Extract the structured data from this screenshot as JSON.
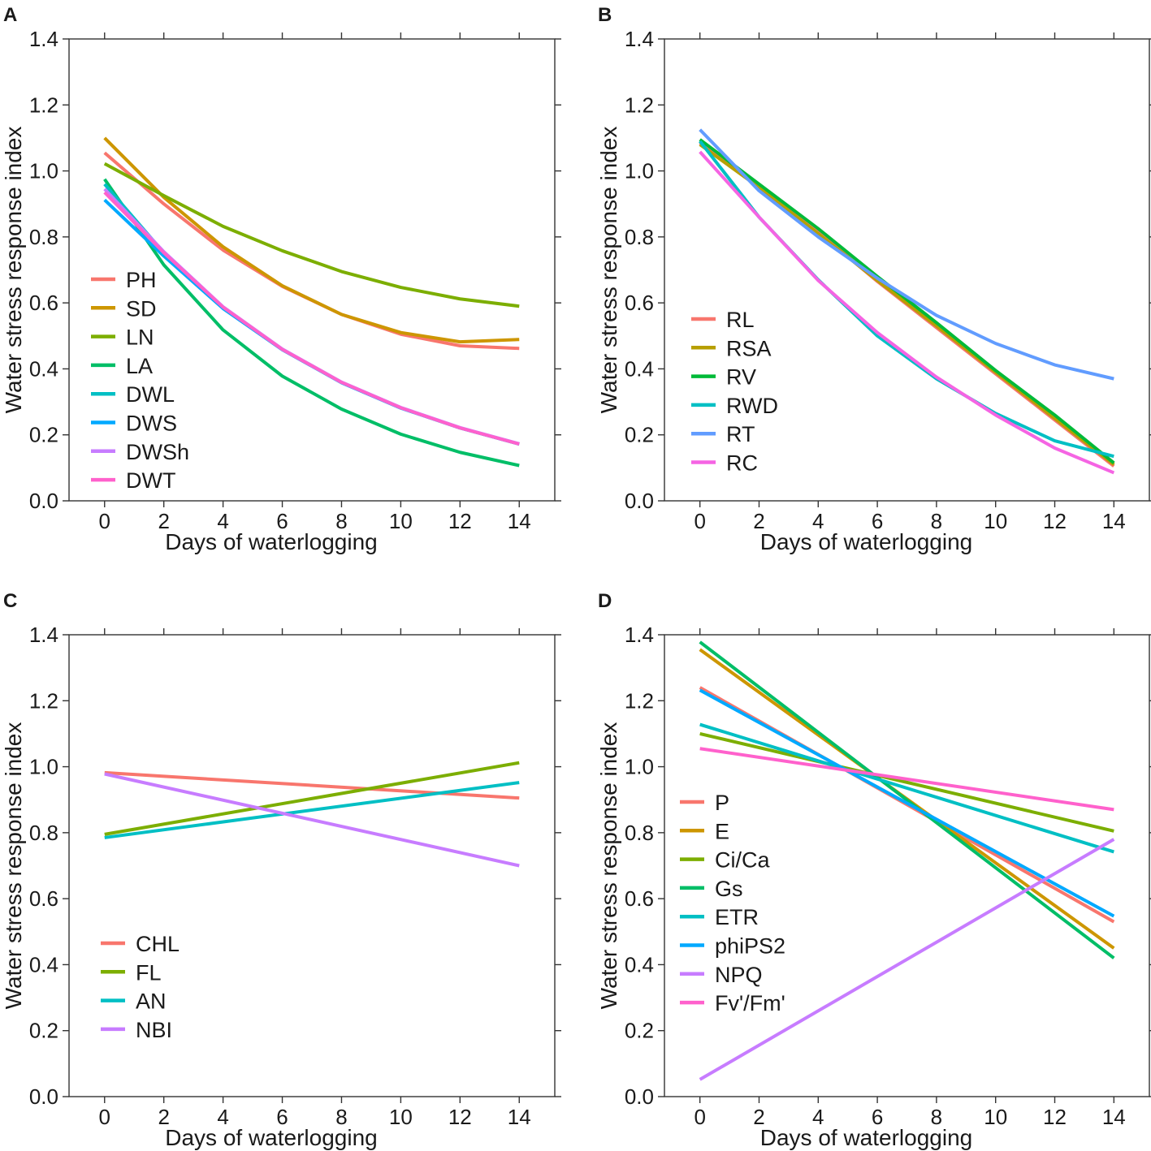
{
  "figure": {
    "description_id": "waterlogging-response-figure"
  },
  "chart_data": [
    {
      "panel": "A",
      "type": "line",
      "xlabel": "Days of waterlogging",
      "ylabel": "Water stress response index",
      "xlim": [
        -1.2,
        15.2
      ],
      "ylim": [
        0,
        1.4
      ],
      "xticks": [
        0,
        2,
        4,
        6,
        8,
        10,
        12,
        14
      ],
      "yticks": [
        "0.0",
        "0.2",
        "0.4",
        "0.6",
        "0.8",
        "1.0",
        "1.2",
        "1.4"
      ],
      "x": [
        0,
        2,
        4,
        6,
        8,
        10,
        12,
        14
      ],
      "legend_position": "left-middle",
      "series": [
        {
          "name": "PH",
          "color": "#F8766D",
          "values": [
            1.055,
            0.9,
            0.76,
            0.65,
            0.565,
            0.505,
            0.47,
            0.462
          ]
        },
        {
          "name": "SD",
          "color": "#CD9600",
          "values": [
            1.1,
            0.92,
            0.77,
            0.652,
            0.565,
            0.51,
            0.482,
            0.489
          ]
        },
        {
          "name": "LN",
          "color": "#7CAE00",
          "values": [
            1.022,
            0.925,
            0.832,
            0.758,
            0.695,
            0.647,
            0.612,
            0.59
          ]
        },
        {
          "name": "LA",
          "color": "#00BE67",
          "values": [
            0.975,
            0.715,
            0.518,
            0.378,
            0.278,
            0.202,
            0.147,
            0.107
          ]
        },
        {
          "name": "DWL",
          "color": "#00BFC4",
          "values": [
            0.96,
            0.752,
            0.587,
            0.459,
            0.359,
            0.282,
            0.221,
            0.172
          ]
        },
        {
          "name": "DWS",
          "color": "#00A9FF",
          "values": [
            0.912,
            0.742,
            0.583,
            0.458,
            0.358,
            0.281,
            0.221,
            0.172
          ]
        },
        {
          "name": "DWSh",
          "color": "#C77CFF",
          "values": [
            0.945,
            0.755,
            0.588,
            0.46,
            0.36,
            0.283,
            0.222,
            0.173
          ]
        },
        {
          "name": "DWT",
          "color": "#FF61CC",
          "values": [
            0.935,
            0.752,
            0.587,
            0.459,
            0.359,
            0.282,
            0.221,
            0.172
          ]
        }
      ]
    },
    {
      "panel": "B",
      "type": "line",
      "xlabel": "Days of waterlogging",
      "ylabel": "Water stress response index",
      "xlim": [
        -1.2,
        15.2
      ],
      "ylim": [
        0,
        1.4
      ],
      "xticks": [
        0,
        2,
        4,
        6,
        8,
        10,
        12,
        14
      ],
      "yticks": [
        "0.0",
        "0.2",
        "0.4",
        "0.6",
        "0.8",
        "1.0",
        "1.2",
        "1.4"
      ],
      "x": [
        0,
        2,
        4,
        6,
        8,
        10,
        12,
        14
      ],
      "legend_position": "left-middle",
      "series": [
        {
          "name": "RL",
          "color": "#F8766D",
          "values": [
            1.085,
            0.955,
            0.815,
            0.665,
            0.525,
            0.385,
            0.245,
            0.105
          ]
        },
        {
          "name": "RSA",
          "color": "#B79F00",
          "values": [
            1.08,
            0.95,
            0.81,
            0.668,
            0.53,
            0.39,
            0.25,
            0.11
          ]
        },
        {
          "name": "RV",
          "color": "#00BA38",
          "values": [
            1.095,
            0.96,
            0.825,
            0.68,
            0.54,
            0.395,
            0.26,
            0.115
          ]
        },
        {
          "name": "RWD",
          "color": "#00BFC4",
          "values": [
            1.09,
            0.86,
            0.67,
            0.5,
            0.37,
            0.265,
            0.182,
            0.135
          ]
        },
        {
          "name": "RT",
          "color": "#619CFF",
          "values": [
            1.125,
            0.94,
            0.8,
            0.675,
            0.562,
            0.477,
            0.412,
            0.37
          ]
        },
        {
          "name": "RC",
          "color": "#F564E3",
          "values": [
            1.058,
            0.86,
            0.668,
            0.51,
            0.375,
            0.26,
            0.16,
            0.085
          ]
        }
      ]
    },
    {
      "panel": "C",
      "type": "line",
      "xlabel": "Days of waterlogging",
      "ylabel": "Water stress response index",
      "xlim": [
        -1.2,
        15.2
      ],
      "ylim": [
        0,
        1.4
      ],
      "xticks": [
        0,
        2,
        4,
        6,
        8,
        10,
        12,
        14
      ],
      "yticks": [
        "0.0",
        "0.2",
        "0.4",
        "0.6",
        "0.8",
        "1.0",
        "1.2",
        "1.4"
      ],
      "x": [
        0,
        14
      ],
      "legend_position": "bottom-left",
      "series": [
        {
          "name": "CHL",
          "color": "#F8766D",
          "values": [
            0.982,
            0.905
          ]
        },
        {
          "name": "FL",
          "color": "#7CAE00",
          "values": [
            0.795,
            1.012
          ]
        },
        {
          "name": "AN",
          "color": "#00BFC4",
          "values": [
            0.785,
            0.952
          ]
        },
        {
          "name": "NBI",
          "color": "#C77CFF",
          "values": [
            0.978,
            0.7
          ]
        }
      ]
    },
    {
      "panel": "D",
      "type": "line",
      "xlabel": "Days of waterlogging",
      "ylabel": "Water stress response index",
      "xlim": [
        -1.2,
        15.2
      ],
      "ylim": [
        0,
        1.4
      ],
      "xticks": [
        0,
        2,
        4,
        6,
        8,
        10,
        12,
        14
      ],
      "yticks": [
        "0.0",
        "0.2",
        "0.4",
        "0.6",
        "0.8",
        "1.0",
        "1.2",
        "1.4"
      ],
      "x": [
        0,
        14
      ],
      "legend_position": "left-middle",
      "series": [
        {
          "name": "P",
          "color": "#F8766D",
          "values": [
            1.24,
            0.53
          ]
        },
        {
          "name": "E",
          "color": "#CD9600",
          "values": [
            1.355,
            0.45
          ]
        },
        {
          "name": "Ci/Ca",
          "color": "#7CAE00",
          "values": [
            1.1,
            0.805
          ]
        },
        {
          "name": "Gs",
          "color": "#00BE67",
          "values": [
            1.378,
            0.42
          ]
        },
        {
          "name": "ETR",
          "color": "#00BFC4",
          "values": [
            1.128,
            0.742
          ]
        },
        {
          "name": "phiPS2",
          "color": "#00A9FF",
          "values": [
            1.232,
            0.547
          ]
        },
        {
          "name": "NPQ",
          "color": "#C77CFF",
          "values": [
            0.052,
            0.78
          ]
        },
        {
          "name": "Fv'/Fm'",
          "color": "#FF61CC",
          "values": [
            1.055,
            0.87
          ]
        }
      ]
    }
  ]
}
